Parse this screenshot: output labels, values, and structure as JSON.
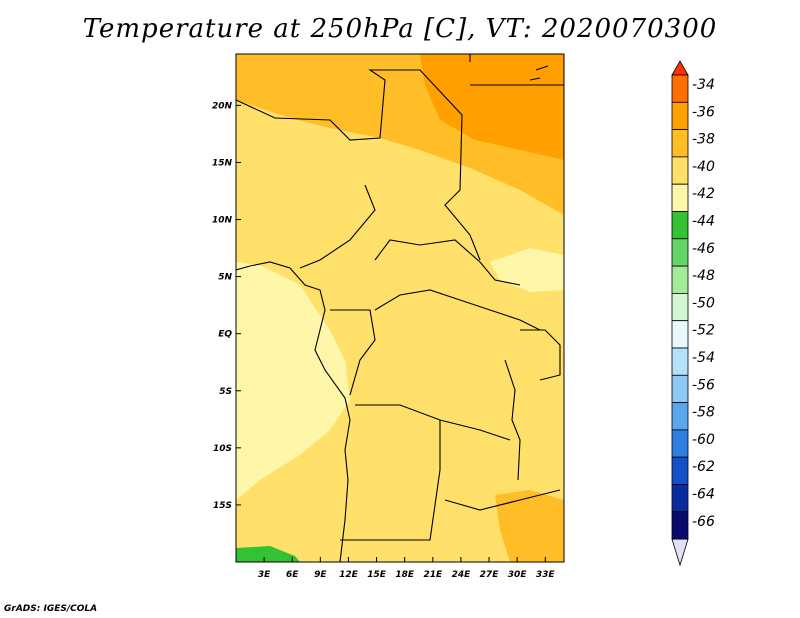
{
  "title": "Temperature at 250hPa [C], VT: 2020070300",
  "credit": "GrADS: IGES/COLA",
  "chart_data": {
    "type": "heatmap",
    "title": "Temperature at 250hPa [C], VT: 2020070300",
    "xlim": [
      0,
      35
    ],
    "ylim": [
      -20,
      24.5
    ],
    "x_tick_labels": [
      "3E",
      "6E",
      "9E",
      "12E",
      "15E",
      "18E",
      "21E",
      "24E",
      "27E",
      "30E",
      "33E"
    ],
    "x_tick_values": [
      3,
      6,
      9,
      12,
      15,
      18,
      21,
      24,
      27,
      30,
      33
    ],
    "y_tick_labels": [
      "20N",
      "15N",
      "10N",
      "5N",
      "EQ",
      "5S",
      "10S",
      "15S"
    ],
    "y_tick_values": [
      20,
      15,
      10,
      5,
      0,
      -5,
      -10,
      -15
    ],
    "colorbar": {
      "labels": [
        "-34",
        "-36",
        "-38",
        "-40",
        "-42",
        "-44",
        "-46",
        "-48",
        "-50",
        "-52",
        "-54",
        "-56",
        "-58",
        "-60",
        "-62",
        "-64",
        "-66"
      ],
      "colors": [
        "#ff3200",
        "#ff6e00",
        "#ffa000",
        "#ffbe28",
        "#fee06a",
        "#fef6a8",
        "#33c233",
        "#66d466",
        "#a5ea9a",
        "#d2f6d2",
        "#e8fafd",
        "#b4e0f8",
        "#8ec8f4",
        "#5aa6ec",
        "#2f7ee0",
        "#1450c8",
        "#0a2aa0",
        "#0a0a6e",
        "#e0e0f6"
      ]
    },
    "regions": [
      {
        "name": "north-east warm",
        "value": -37,
        "color": "#ffa000"
      },
      {
        "name": "north band",
        "value": -39,
        "color": "#ffbe28"
      },
      {
        "name": "central band",
        "value": -41,
        "color": "#fee06a"
      },
      {
        "name": "south-west cool",
        "value": -43,
        "color": "#fef6a8"
      },
      {
        "name": "south-west corner",
        "value": -45,
        "color": "#33c233"
      }
    ]
  }
}
